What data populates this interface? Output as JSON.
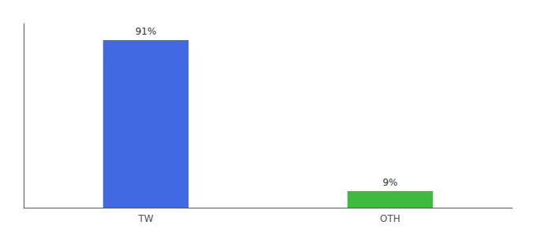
{
  "chart_data": {
    "type": "bar",
    "categories": [
      "TW",
      "OTH"
    ],
    "values": [
      91,
      9
    ],
    "value_labels": [
      "91%",
      "9%"
    ],
    "colors": [
      "#4169e1",
      "#3dbb3d"
    ],
    "ylim": [
      0,
      100
    ],
    "grid": false,
    "data_labels": true,
    "tick_labels": "x"
  }
}
